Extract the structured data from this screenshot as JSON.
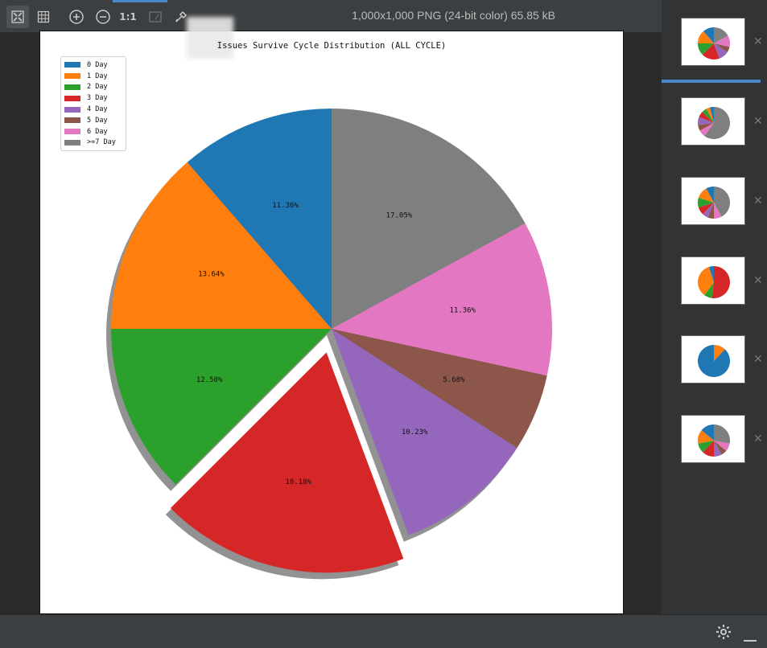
{
  "toolbar": {
    "tools": [
      {
        "name": "fit-icon"
      },
      {
        "name": "grid-icon"
      },
      {
        "name": "zoom-in-icon"
      },
      {
        "name": "zoom-out-icon"
      },
      {
        "name": "actual-size-icon",
        "label": "1:1"
      },
      {
        "name": "fit-window-icon"
      },
      {
        "name": "color-picker-icon"
      }
    ],
    "image_info": "1,000x1,000 PNG (24-bit color) 65.85 kB"
  },
  "image": {
    "title": "Issues Survive Cycle Distribution (ALL CYCLE)"
  },
  "chart_data": {
    "type": "pie",
    "title": "Issues Survive Cycle Distribution (ALL CYCLE)",
    "legend_position": "top-left",
    "slices": [
      {
        "label": "0 Day",
        "value": 11.36,
        "pct_label": "11.36%",
        "color": "#1f77b4"
      },
      {
        "label": "1 Day",
        "value": 13.64,
        "pct_label": "13.64%",
        "color": "#ff7f0e"
      },
      {
        "label": "2 Day",
        "value": 12.5,
        "pct_label": "12.50%",
        "color": "#2ca02c"
      },
      {
        "label": "3 Day",
        "value": 18.18,
        "pct_label": "18.18%",
        "color": "#d62728",
        "explode": true
      },
      {
        "label": "4 Day",
        "value": 10.23,
        "pct_label": "10.23%",
        "color": "#9467bd"
      },
      {
        "label": "5 Day",
        "value": 5.68,
        "pct_label": "5.68%",
        "color": "#8c564b"
      },
      {
        "label": "6 Day",
        "value": 11.36,
        "pct_label": "11.36%",
        "color": "#e377c2"
      },
      {
        "label": ">=7 Day",
        "value": 17.05,
        "pct_label": "17.05%",
        "color": "#7f7f7f"
      }
    ]
  },
  "thumbnails": [
    {
      "name": "thumbnail-1",
      "values": [
        11.36,
        13.64,
        12.5,
        18.18,
        10.23,
        5.68,
        11.36,
        17.05
      ]
    },
    {
      "name": "thumbnail-2",
      "values": [
        4,
        4,
        5,
        6,
        8,
        6,
        7,
        60
      ]
    },
    {
      "name": "thumbnail-3",
      "values": [
        8,
        12,
        10,
        8,
        6,
        6,
        8,
        42
      ]
    },
    {
      "name": "thumbnail-4",
      "values": [
        5,
        35,
        8,
        52
      ]
    },
    {
      "name": "thumbnail-5",
      "values": [
        88,
        12
      ]
    },
    {
      "name": "thumbnail-6",
      "values": [
        14,
        14,
        10,
        12,
        8,
        6,
        8,
        28
      ]
    }
  ]
}
